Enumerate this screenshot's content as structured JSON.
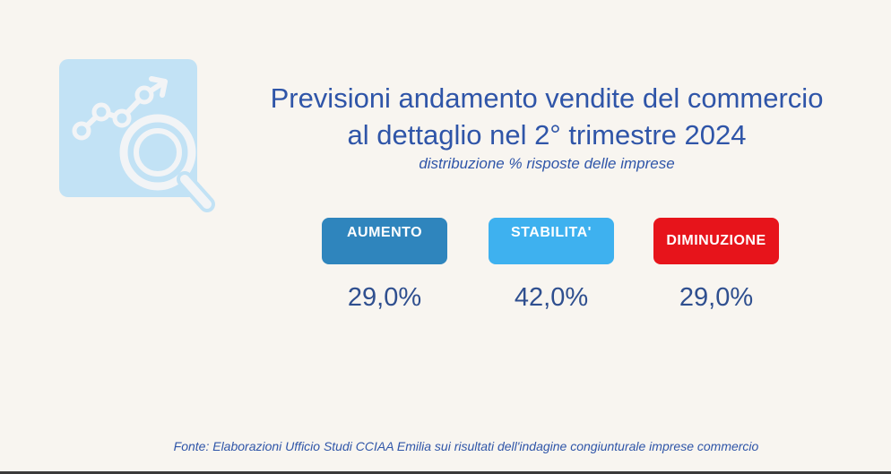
{
  "header": {
    "title_line1": "Previsioni andamento vendite del commercio",
    "title_line2": "al dettaglio nel 2° trimestre 2024",
    "subtitle": "distribuzione % risposte delle imprese"
  },
  "logo": {
    "icon": "trend-magnifier-icon",
    "background_color": "#c2e2f5",
    "stroke_color": "#f2f4f6"
  },
  "categories": [
    {
      "label": "AUMENTO",
      "value": "29,0%",
      "color": "#2f85bd"
    },
    {
      "label": "STABILITA'",
      "value": "42,0%",
      "color": "#3eb1ef"
    },
    {
      "label": "DIMINUZIONE",
      "value": "29,0%",
      "color": "#e7141b"
    }
  ],
  "source": "Fonte: Elaborazioni Ufficio Studi CCIAA Emilia sui risultati dell'indagine congiunturale imprese commercio",
  "colors": {
    "background": "#f8f5f0",
    "text_primary": "#2f55a8"
  }
}
